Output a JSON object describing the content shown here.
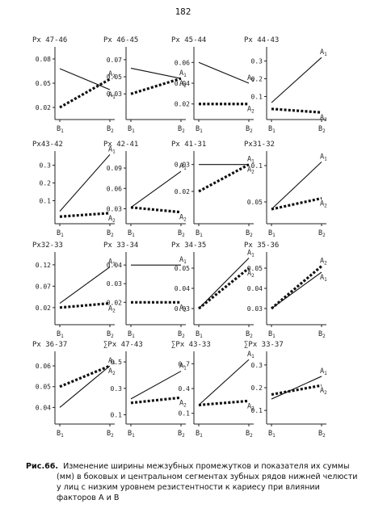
{
  "page_number": "182",
  "caption": {
    "label": "Рис.66.",
    "lines": [
      "Изменение ширины межзубных промежутков и показателя их суммы",
      "(мм) в боковых и центральном сегментах зубных рядов нижней челюсти",
      "у лиц с низким уровнем резистентности к кариесу при влиянии",
      "факторов A и B"
    ]
  },
  "x_categories": [
    "B1",
    "B2"
  ],
  "series_labels": [
    "A1",
    "A2"
  ],
  "chart_data": [
    {
      "type": "line",
      "title": "Px 47-46",
      "categories": [
        "B1",
        "B2"
      ],
      "ylim": [
        0.005,
        0.095
      ],
      "yticks": [
        "0.02",
        "0.05",
        "0.08"
      ],
      "ytick_values": [
        0.02,
        0.05,
        0.08
      ],
      "series": [
        {
          "name": "A1",
          "values": [
            0.068,
            0.042
          ],
          "style": "solid"
        },
        {
          "name": "A2",
          "values": [
            0.02,
            0.055
          ],
          "style": "dotted"
        }
      ]
    },
    {
      "type": "line",
      "title": "Px 46-45",
      "categories": [
        "B1",
        "B2"
      ],
      "ylim": [
        0.0,
        0.085
      ],
      "yticks": [
        "0.03",
        "0.05",
        "0.07"
      ],
      "ytick_values": [
        0.03,
        0.05,
        0.07
      ],
      "series": [
        {
          "name": "A1",
          "values": [
            0.06,
            0.048
          ],
          "style": "solid"
        },
        {
          "name": "A2",
          "values": [
            0.03,
            0.048
          ],
          "style": "dotted"
        }
      ]
    },
    {
      "type": "line",
      "title": "Px 45-44",
      "categories": [
        "B1",
        "B2"
      ],
      "ylim": [
        0.005,
        0.075
      ],
      "yticks": [
        "0.02",
        "0.04",
        "0.06"
      ],
      "ytick_values": [
        0.02,
        0.04,
        0.06
      ],
      "series": [
        {
          "name": "A1",
          "values": [
            0.06,
            0.04
          ],
          "style": "solid"
        },
        {
          "name": "A2",
          "values": [
            0.02,
            0.02
          ],
          "style": "dotted"
        }
      ]
    },
    {
      "type": "line",
      "title": "Px 44-43",
      "categories": [
        "B1",
        "B2"
      ],
      "ylim": [
        -0.03,
        0.38
      ],
      "yticks": [
        "0.1",
        "0.2",
        "0.3"
      ],
      "ytick_values": [
        0.1,
        0.2,
        0.3
      ],
      "series": [
        {
          "name": "A1",
          "values": [
            0.065,
            0.32
          ],
          "style": "solid"
        },
        {
          "name": "A2",
          "values": [
            0.03,
            0.01
          ],
          "style": "dotted"
        }
      ]
    },
    {
      "type": "line",
      "title": "Px43-42",
      "categories": [
        "B1",
        "B2"
      ],
      "ylim": [
        -0.03,
        0.38
      ],
      "yticks": [
        "0.1",
        "0.2",
        "0.3"
      ],
      "ytick_values": [
        0.1,
        0.2,
        0.3
      ],
      "series": [
        {
          "name": "A1",
          "values": [
            0.04,
            0.36
          ],
          "style": "solid"
        },
        {
          "name": "A2",
          "values": [
            0.01,
            0.03
          ],
          "style": "dotted"
        }
      ]
    },
    {
      "type": "line",
      "title": "Px 42-41",
      "categories": [
        "B1",
        "B2"
      ],
      "ylim": [
        0.008,
        0.115
      ],
      "yticks": [
        "0.03",
        "0.06",
        "0.09"
      ],
      "ytick_values": [
        0.03,
        0.06,
        0.09
      ],
      "series": [
        {
          "name": "A1",
          "values": [
            0.032,
            0.085
          ],
          "style": "solid"
        },
        {
          "name": "A2",
          "values": [
            0.032,
            0.025
          ],
          "style": "dotted"
        }
      ]
    },
    {
      "type": "line",
      "title": "Px 41-31",
      "categories": [
        "B1",
        "B2"
      ],
      "ylim": [
        0.008,
        0.035
      ],
      "yticks": [
        "0.02",
        "0.03"
      ],
      "ytick_values": [
        0.02,
        0.03
      ],
      "series": [
        {
          "name": "A1",
          "values": [
            0.03,
            0.03
          ],
          "style": "solid"
        },
        {
          "name": "A2",
          "values": [
            0.02,
            0.03
          ],
          "style": "dotted"
        }
      ]
    },
    {
      "type": "line",
      "title": "Px31-32",
      "categories": [
        "B1",
        "B2"
      ],
      "ylim": [
        0.02,
        0.12
      ],
      "yticks": [
        "0.05",
        "0.1"
      ],
      "ytick_values": [
        0.05,
        0.1
      ],
      "series": [
        {
          "name": "A1",
          "values": [
            0.04,
            0.105
          ],
          "style": "solid"
        },
        {
          "name": "A2",
          "values": [
            0.04,
            0.055
          ],
          "style": "dotted"
        }
      ]
    },
    {
      "type": "line",
      "title": "Px32-33",
      "categories": [
        "B1",
        "B2"
      ],
      "ylim": [
        -0.02,
        0.15
      ],
      "yticks": [
        "0.02",
        "0.07",
        "0.12"
      ],
      "ytick_values": [
        0.02,
        0.07,
        0.12
      ],
      "series": [
        {
          "name": "A1",
          "values": [
            0.03,
            0.115
          ],
          "style": "solid"
        },
        {
          "name": "A2",
          "values": [
            0.02,
            0.03
          ],
          "style": "dotted"
        }
      ]
    },
    {
      "type": "line",
      "title": "Px 33-34",
      "categories": [
        "B1",
        "B2"
      ],
      "ylim": [
        0.008,
        0.047
      ],
      "yticks": [
        "0.02",
        "0.03",
        "0.04"
      ],
      "ytick_values": [
        0.02,
        0.03,
        0.04
      ],
      "series": [
        {
          "name": "A1",
          "values": [
            0.04,
            0.04
          ],
          "style": "solid"
        },
        {
          "name": "A2",
          "values": [
            0.02,
            0.02
          ],
          "style": "dotted"
        }
      ]
    },
    {
      "type": "line",
      "title": "Px 34-35",
      "categories": [
        "B1",
        "B2"
      ],
      "ylim": [
        0.022,
        0.058
      ],
      "yticks": [
        "0.03",
        "0.04",
        "0.05"
      ],
      "ytick_values": [
        0.03,
        0.04,
        0.05
      ],
      "series": [
        {
          "name": "A1",
          "values": [
            0.03,
            0.055
          ],
          "style": "solid"
        },
        {
          "name": "A2",
          "values": [
            0.03,
            0.05
          ],
          "style": "dotted"
        }
      ]
    },
    {
      "type": "line",
      "title": "Px 35-36",
      "categories": [
        "B1",
        "B2"
      ],
      "ylim": [
        0.022,
        0.058
      ],
      "yticks": [
        "0.03",
        "0.04",
        "0.05"
      ],
      "ytick_values": [
        0.03,
        0.04,
        0.05
      ],
      "series": [
        {
          "name": "A1",
          "values": [
            0.03,
            0.048
          ],
          "style": "solid"
        },
        {
          "name": "A2",
          "values": [
            0.03,
            0.051
          ],
          "style": "dotted"
        }
      ]
    },
    {
      "type": "line",
      "title": "Px 36-37",
      "categories": [
        "B1",
        "B2"
      ],
      "ylim": [
        0.032,
        0.067
      ],
      "yticks": [
        "0.04",
        "0.05",
        "0.06"
      ],
      "ytick_values": [
        0.04,
        0.05,
        0.06
      ],
      "series": [
        {
          "name": "A1",
          "values": [
            0.04,
            0.06
          ],
          "style": "solid"
        },
        {
          "name": "A2",
          "values": [
            0.05,
            0.06
          ],
          "style": "dotted"
        }
      ]
    },
    {
      "type": "line",
      "title": "∑Px 47-43",
      "categories": [
        "B1",
        "B2"
      ],
      "ylim": [
        0.03,
        0.58
      ],
      "yticks": [
        "0.1",
        "0.3",
        "0.5"
      ],
      "ytick_values": [
        0.1,
        0.3,
        0.5
      ],
      "series": [
        {
          "name": "A1",
          "values": [
            0.22,
            0.43
          ],
          "style": "solid"
        },
        {
          "name": "A2",
          "values": [
            0.19,
            0.23
          ],
          "style": "dotted"
        }
      ]
    },
    {
      "type": "line",
      "title": "∑Px 43-33",
      "categories": [
        "B1",
        "B2"
      ],
      "ylim": [
        -0.03,
        0.85
      ],
      "yticks": [
        "0.1",
        "0.4",
        "0.7"
      ],
      "ytick_values": [
        0.1,
        0.4,
        0.7
      ],
      "series": [
        {
          "name": "A1",
          "values": [
            0.2,
            0.75
          ],
          "style": "solid"
        },
        {
          "name": "A2",
          "values": [
            0.2,
            0.25
          ],
          "style": "dotted"
        }
      ]
    },
    {
      "type": "line",
      "title": "∑Px 33-37",
      "categories": [
        "B1",
        "B2"
      ],
      "ylim": [
        0.04,
        0.36
      ],
      "yticks": [
        "0.1",
        "0.2",
        "0.3"
      ],
      "ytick_values": [
        0.1,
        0.2,
        0.3
      ],
      "series": [
        {
          "name": "A1",
          "values": [
            0.15,
            0.25
          ],
          "style": "solid"
        },
        {
          "name": "A2",
          "values": [
            0.17,
            0.21
          ],
          "style": "dotted"
        }
      ]
    }
  ]
}
